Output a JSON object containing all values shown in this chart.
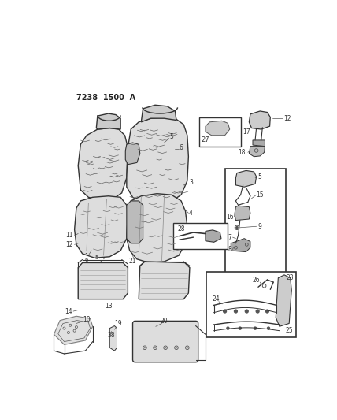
{
  "title": "7238 1500 A",
  "bg_color": "#ffffff",
  "fig_width": 4.28,
  "fig_height": 5.33,
  "dpi": 100,
  "gray": "#555555",
  "dgray": "#333333",
  "lgray": "#aaaaaa",
  "llgray": "#dddddd"
}
